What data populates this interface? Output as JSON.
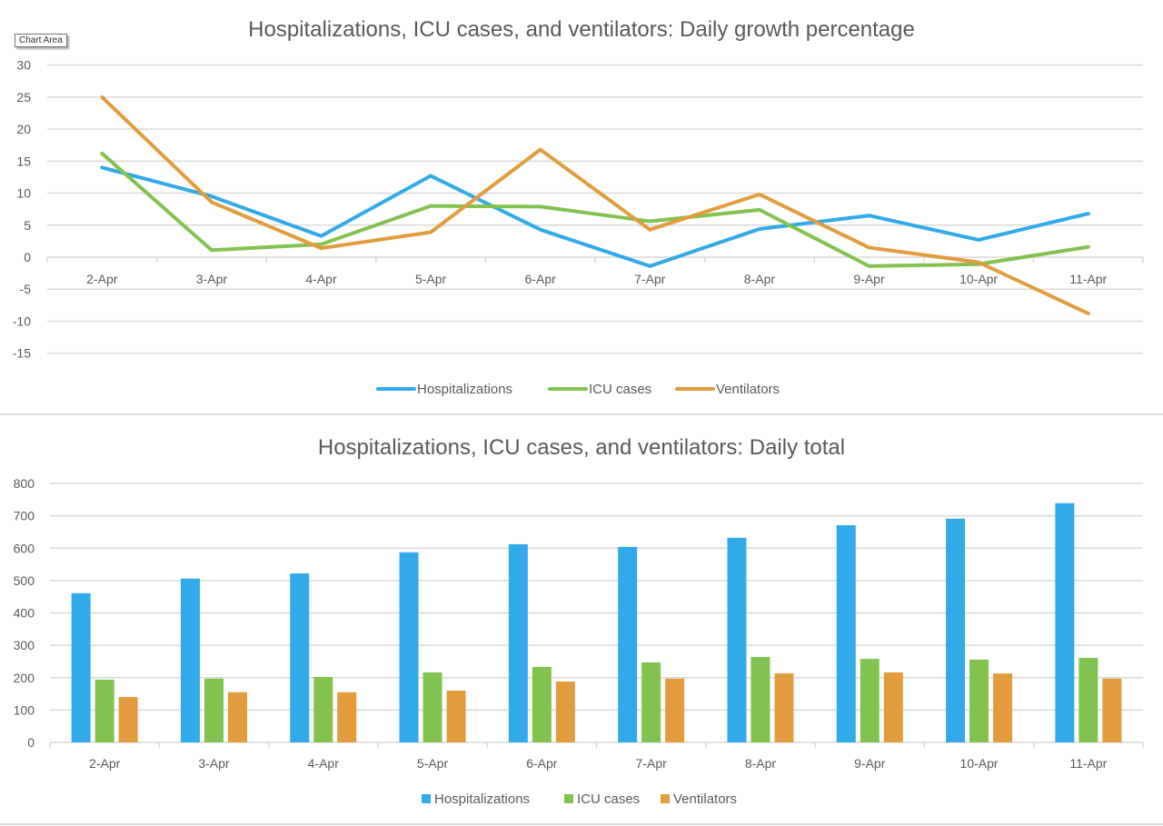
{
  "tooltip": {
    "label": "Chart Area"
  },
  "colors": {
    "hospitalizations": "#32aaea",
    "icu": "#82c250",
    "ventilators": "#e29c3d"
  },
  "chart_data": [
    {
      "type": "line",
      "title": "Hospitalizations, ICU cases, and ventilators: Daily growth percentage",
      "xlabel": "",
      "ylabel": "",
      "categories": [
        "2-Apr",
        "3-Apr",
        "4-Apr",
        "5-Apr",
        "6-Apr",
        "7-Apr",
        "8-Apr",
        "9-Apr",
        "10-Apr",
        "11-Apr"
      ],
      "ylim": [
        -15,
        30
      ],
      "yticks": [
        30,
        25,
        20,
        15,
        10,
        5,
        0,
        -5,
        -10,
        -15
      ],
      "grid": true,
      "legend": "bottom",
      "series": [
        {
          "name": "Hospitalizations",
          "color": "#32aaea",
          "values": [
            14.0,
            9.5,
            3.3,
            12.7,
            4.3,
            -1.4,
            4.4,
            6.5,
            2.7,
            6.8
          ]
        },
        {
          "name": "ICU cases",
          "color": "#82c250",
          "values": [
            16.2,
            1.1,
            2.0,
            8.0,
            7.9,
            5.6,
            7.4,
            -1.4,
            -1.1,
            1.6
          ]
        },
        {
          "name": "Ventilators",
          "color": "#e29c3d",
          "values": [
            25.0,
            8.6,
            1.4,
            3.9,
            16.8,
            4.3,
            9.8,
            1.5,
            -0.8,
            -8.8
          ]
        }
      ]
    },
    {
      "type": "bar",
      "title": "Hospitalizations, ICU cases, and ventilators: Daily total",
      "xlabel": "",
      "ylabel": "",
      "categories": [
        "2-Apr",
        "3-Apr",
        "4-Apr",
        "5-Apr",
        "6-Apr",
        "7-Apr",
        "8-Apr",
        "9-Apr",
        "10-Apr",
        "11-Apr"
      ],
      "ylim": [
        0,
        800
      ],
      "yticks": [
        800,
        700,
        600,
        500,
        400,
        300,
        200,
        100,
        0
      ],
      "grid": true,
      "legend": "bottom",
      "series": [
        {
          "name": "Hospitalizations",
          "color": "#32aaea",
          "values": [
            461,
            506,
            522,
            587,
            612,
            604,
            632,
            671,
            691,
            739
          ]
        },
        {
          "name": "ICU cases",
          "color": "#82c250",
          "values": [
            194,
            197,
            202,
            216,
            233,
            247,
            264,
            258,
            256,
            261
          ]
        },
        {
          "name": "Ventilators",
          "color": "#e29c3d",
          "values": [
            140,
            155,
            155,
            160,
            188,
            197,
            213,
            216,
            213,
            197
          ]
        }
      ]
    }
  ]
}
